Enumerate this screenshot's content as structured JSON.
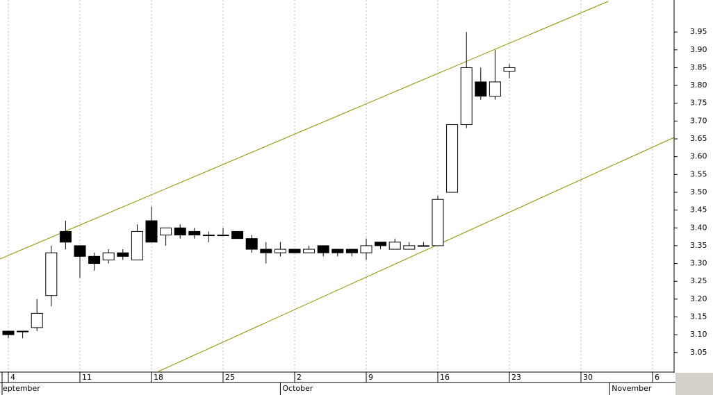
{
  "chart_data": {
    "type": "candlestick",
    "x": [
      "09-04",
      "09-05",
      "09-06",
      "09-07",
      "09-08",
      "09-11",
      "09-12",
      "09-13",
      "09-14",
      "09-15",
      "09-18",
      "09-19",
      "09-20",
      "09-21",
      "09-22",
      "09-25",
      "09-26",
      "09-27",
      "09-28",
      "09-29",
      "10-02",
      "10-03",
      "10-04",
      "10-05",
      "10-06",
      "10-09",
      "10-10",
      "10-11",
      "10-12",
      "10-13",
      "10-16",
      "10-17",
      "10-18",
      "10-19",
      "10-20",
      "10-23"
    ],
    "open": [
      3.11,
      3.11,
      3.12,
      3.21,
      3.39,
      3.35,
      3.32,
      3.31,
      3.33,
      3.31,
      3.42,
      3.38,
      3.4,
      3.39,
      3.38,
      3.38,
      3.39,
      3.37,
      3.34,
      3.33,
      3.34,
      3.33,
      3.35,
      3.34,
      3.34,
      3.33,
      3.36,
      3.34,
      3.34,
      3.35,
      3.35,
      3.5,
      3.69,
      3.81,
      3.77,
      3.84
    ],
    "high": [
      3.11,
      3.11,
      3.2,
      3.35,
      3.42,
      3.35,
      3.33,
      3.34,
      3.34,
      3.41,
      3.46,
      3.4,
      3.41,
      3.4,
      3.39,
      3.4,
      3.39,
      3.38,
      3.36,
      3.36,
      3.34,
      3.35,
      3.35,
      3.34,
      3.34,
      3.37,
      3.36,
      3.37,
      3.36,
      3.36,
      3.49,
      3.69,
      3.95,
      3.85,
      3.9,
      3.86
    ],
    "low": [
      3.09,
      3.09,
      3.11,
      3.18,
      3.34,
      3.26,
      3.28,
      3.3,
      3.31,
      3.31,
      3.36,
      3.35,
      3.37,
      3.37,
      3.36,
      3.38,
      3.37,
      3.33,
      3.3,
      3.32,
      3.33,
      3.33,
      3.32,
      3.32,
      3.32,
      3.31,
      3.34,
      3.34,
      3.34,
      3.35,
      3.35,
      3.5,
      3.68,
      3.76,
      3.76,
      3.82
    ],
    "close": [
      3.1,
      3.11,
      3.16,
      3.33,
      3.36,
      3.32,
      3.3,
      3.33,
      3.32,
      3.39,
      3.36,
      3.4,
      3.38,
      3.38,
      3.38,
      3.38,
      3.37,
      3.34,
      3.33,
      3.34,
      3.33,
      3.34,
      3.33,
      3.33,
      3.33,
      3.35,
      3.35,
      3.36,
      3.35,
      3.35,
      3.48,
      3.69,
      3.85,
      3.77,
      3.81,
      3.85
    ],
    "up_color": "#ffffff",
    "down_color": "#000000",
    "ylim": [
      2.995,
      4.04
    ],
    "yticks": [
      3.05,
      {
        "value": 3.1,
        "label": "3.10"
      },
      3.15,
      {
        "value": 3.2,
        "label": "3.20"
      },
      3.25,
      {
        "value": 3.3,
        "label": "3.30"
      },
      3.35,
      {
        "value": 3.4,
        "label": "3.40"
      },
      3.45,
      {
        "value": 3.5,
        "label": "3.50"
      },
      3.55,
      {
        "value": 3.6,
        "label": "3.60"
      },
      3.65,
      {
        "value": 3.7,
        "label": "3.70"
      },
      3.75,
      {
        "value": 3.8,
        "label": "3.80"
      },
      3.85,
      {
        "value": 3.9,
        "label": "3.90"
      },
      3.95
    ],
    "xticks": [
      {
        "value": "09-04",
        "label": "4"
      },
      {
        "value": "09-11",
        "label": "11"
      },
      {
        "value": "09-18",
        "label": "18"
      },
      {
        "value": "09-25",
        "label": "25"
      },
      {
        "value": "10-02",
        "label": "2"
      },
      {
        "value": "10-09",
        "label": "9"
      },
      {
        "value": "10-16",
        "label": "16"
      },
      {
        "value": "10-23",
        "label": "23"
      },
      {
        "value": "10-30",
        "label": "30"
      },
      {
        "value": "11-06",
        "label": "6"
      }
    ],
    "months": [
      {
        "value": "09-01",
        "label": "eptember"
      },
      {
        "value": "10-01",
        "label": "October"
      },
      {
        "value": "11-01",
        "label": "November"
      }
    ],
    "grid": true
  }
}
